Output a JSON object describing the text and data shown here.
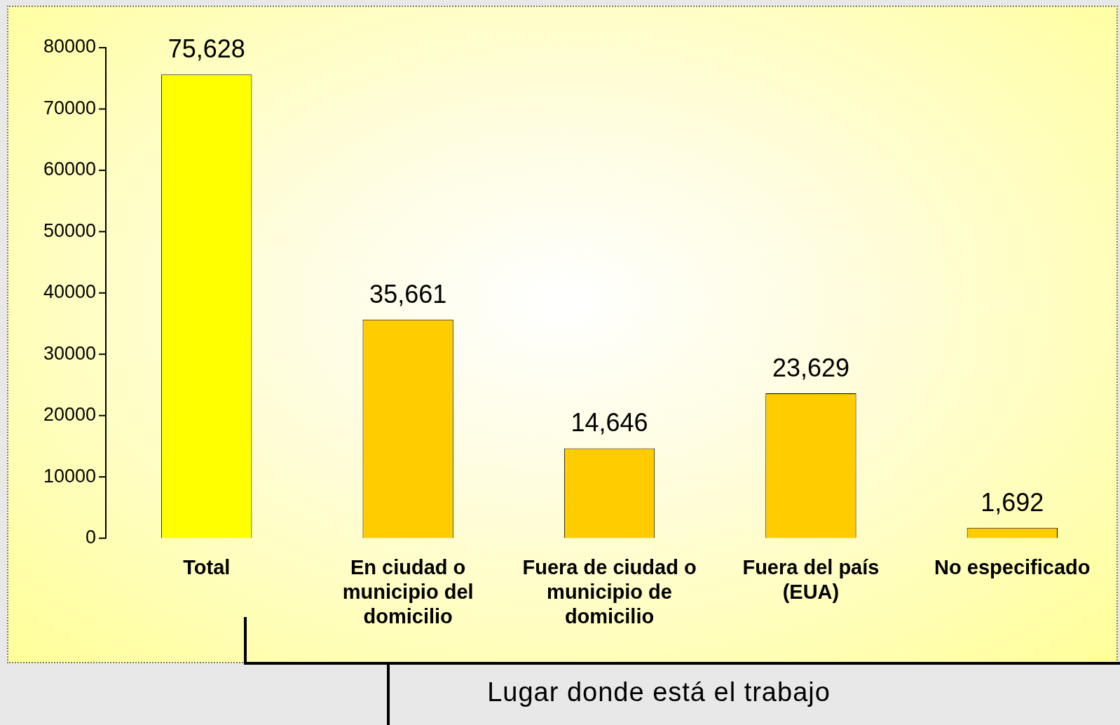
{
  "chart_data": {
    "type": "bar",
    "xlabel": "Lugar donde está el trabajo",
    "categories": [
      "Total",
      "En ciudad o municipio del domicilio",
      "Fuera de ciudad o municipio de domicilio",
      "Fuera del país (EUA)",
      "No especificado"
    ],
    "values": [
      75628,
      35661,
      14646,
      23629,
      1692
    ],
    "value_labels": [
      "75,628",
      "35,661",
      "14,646",
      "23,629",
      "1,692"
    ],
    "colors": [
      "#ffff00",
      "#ffcc00",
      "#ffcc00",
      "#ffcc00",
      "#ffcc00"
    ],
    "ylim": [
      0,
      80000
    ],
    "yticks": [
      0,
      10000,
      20000,
      30000,
      40000,
      50000,
      60000,
      70000,
      80000
    ],
    "grid": false,
    "legend": false
  }
}
